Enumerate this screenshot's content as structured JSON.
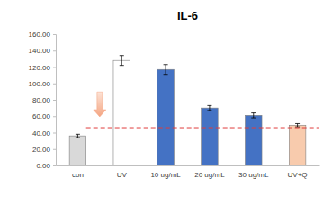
{
  "chart_data": {
    "type": "bar",
    "title": "IL-6",
    "categories": [
      "con",
      "UV",
      "10 ug/mL",
      "20 ug/mL",
      "30 ug/mL",
      "UV+Q"
    ],
    "values": [
      36,
      128,
      117,
      70,
      61,
      49
    ],
    "errors": [
      2,
      6,
      6,
      3,
      3,
      2
    ],
    "colors": [
      "#d9d9d9",
      "#ffffff",
      "#4472c4",
      "#4472c4",
      "#4472c4",
      "#f8cbad"
    ],
    "reference_line": 46,
    "ylim": [
      0,
      160
    ],
    "yticks": [
      {
        "value": 0,
        "label": "0.00"
      },
      {
        "value": 20,
        "label": "20.00"
      },
      {
        "value": 40,
        "label": "40.00"
      },
      {
        "value": 60,
        "label": "60.00"
      },
      {
        "value": 80,
        "label": "80.00"
      },
      {
        "value": 100,
        "label": "100.00"
      },
      {
        "value": 120,
        "label": "120.00"
      },
      {
        "value": 140,
        "label": "140.00"
      },
      {
        "value": 160,
        "label": "160.00"
      }
    ],
    "grid": false
  }
}
